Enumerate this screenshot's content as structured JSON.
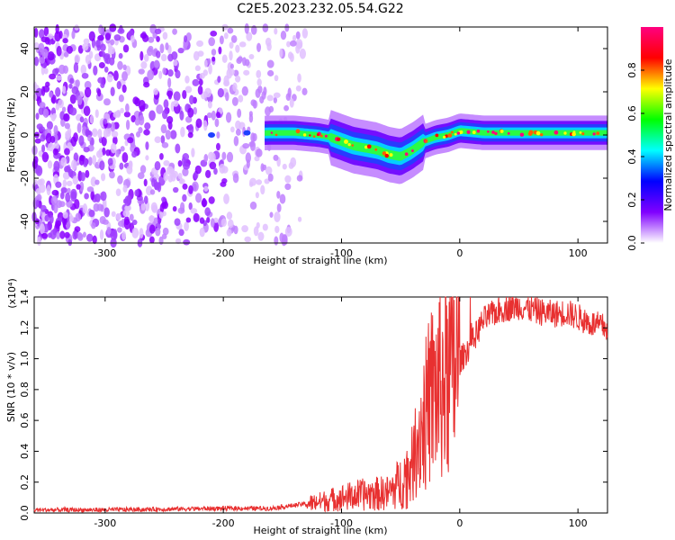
{
  "title": "C2E5.2023.232.05.54.G22",
  "chart_data": [
    {
      "type": "heatmap",
      "name": "spectrogram",
      "xlabel": "Height of straight line (km)",
      "ylabel": "Frequency (Hz)",
      "xlim": [
        -360,
        125
      ],
      "ylim": [
        -50,
        50
      ],
      "xticks": [
        "-300",
        "-200",
        "-100",
        "0",
        "100"
      ],
      "yticks": [
        "-40",
        "-20",
        "0",
        "20",
        "40"
      ],
      "ridge_center_hz": [
        [
          -220,
          0
        ],
        [
          -160,
          1
        ],
        [
          -140,
          1
        ],
        [
          -120,
          0
        ],
        [
          -110,
          -1
        ],
        [
          -100,
          -3
        ],
        [
          -90,
          -5
        ],
        [
          -80,
          -6
        ],
        [
          -70,
          -7
        ],
        [
          -60,
          -9
        ],
        [
          -50,
          -10
        ],
        [
          -40,
          -7
        ],
        [
          -30,
          -3
        ],
        [
          -20,
          -1
        ],
        [
          -10,
          0
        ],
        [
          0,
          2
        ],
        [
          20,
          1
        ],
        [
          60,
          1
        ],
        [
          100,
          1
        ],
        [
          125,
          1
        ]
      ],
      "noise_region_km": [
        -360,
        -130
      ],
      "colorbar": {
        "label": "Normalized spectral amplitude",
        "range": [
          0,
          1
        ],
        "ticks": [
          "0.0",
          "0.2",
          "0.4",
          "0.6",
          "0.8"
        ],
        "colormap": [
          "#ffffff",
          "#8000ff",
          "#0000ff",
          "#00ffff",
          "#00ff00",
          "#ffff00",
          "#ff0000",
          "#ff0080"
        ]
      }
    },
    {
      "type": "line",
      "name": "snr",
      "xlabel": "Height of straight line (km)",
      "ylabel": "SNR (10 * v/v)",
      "scale_label": "(x10⁴)",
      "scale": 10000,
      "xlim": [
        -360,
        125
      ],
      "ylim": [
        0,
        14000
      ],
      "xticks": [
        "-300",
        "-200",
        "-100",
        "0",
        "100"
      ],
      "yticks": [
        "0.0",
        "0.2",
        "0.4",
        "0.6",
        "0.8",
        "1.0",
        "1.2",
        "1.4"
      ],
      "color": "#e83030",
      "trend_points": [
        [
          -360,
          200
        ],
        [
          -300,
          200
        ],
        [
          -250,
          250
        ],
        [
          -200,
          300
        ],
        [
          -160,
          300
        ],
        [
          -140,
          500
        ],
        [
          -120,
          700
        ],
        [
          -100,
          1000
        ],
        [
          -80,
          1200
        ],
        [
          -60,
          1300
        ],
        [
          -50,
          2000
        ],
        [
          -40,
          3000
        ],
        [
          -35,
          5000
        ],
        [
          -30,
          6000
        ],
        [
          -25,
          7500
        ],
        [
          -20,
          8000
        ],
        [
          -15,
          8500
        ],
        [
          -10,
          9000
        ],
        [
          -5,
          9500
        ],
        [
          0,
          9800
        ],
        [
          10,
          11000
        ],
        [
          20,
          12500
        ],
        [
          30,
          13000
        ],
        [
          40,
          13300
        ],
        [
          50,
          13400
        ],
        [
          60,
          13200
        ],
        [
          70,
          13000
        ],
        [
          80,
          12900
        ],
        [
          90,
          13000
        ],
        [
          100,
          12700
        ],
        [
          110,
          12300
        ],
        [
          125,
          12000
        ]
      ]
    }
  ]
}
